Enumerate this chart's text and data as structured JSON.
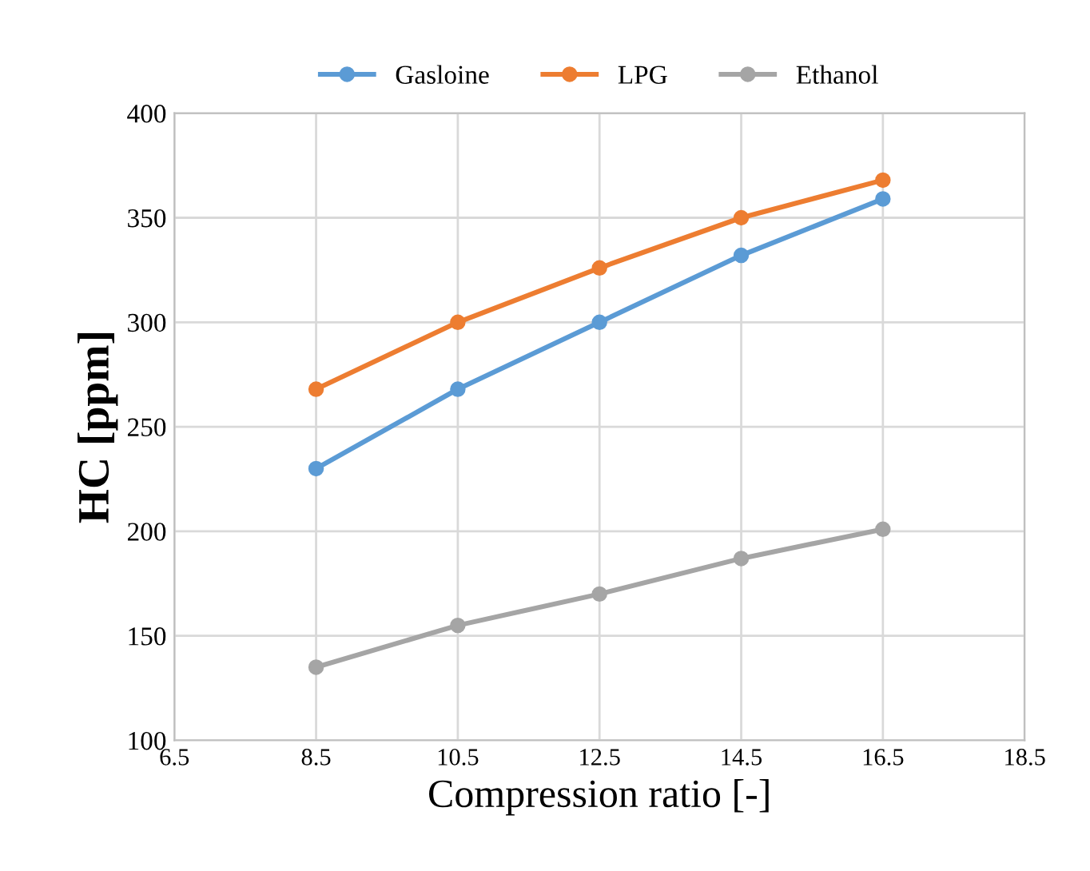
{
  "chart_data": {
    "type": "line",
    "xlabel": "Compression ratio [-]",
    "ylabel": "HC [ppm]",
    "x": [
      8.5,
      10.5,
      12.5,
      14.5,
      16.5
    ],
    "series": [
      {
        "name": "Gasloine",
        "color": "#5b9bd5",
        "values": [
          230,
          268,
          300,
          332,
          359
        ]
      },
      {
        "name": "LPG",
        "color": "#ed7d31",
        "values": [
          268,
          300,
          326,
          350,
          368
        ]
      },
      {
        "name": "Ethanol",
        "color": "#a5a5a5",
        "values": [
          135,
          155,
          170,
          187,
          201
        ]
      }
    ],
    "xlim": [
      6.5,
      18.5
    ],
    "xticks": [
      6.5,
      8.5,
      10.5,
      12.5,
      14.5,
      16.5,
      18.5
    ],
    "ylim": [
      100,
      400
    ],
    "yticks": [
      100,
      150,
      200,
      250,
      300,
      350,
      400
    ],
    "grid": true,
    "legend": "top",
    "marker": "circle",
    "line_style": "solid"
  }
}
